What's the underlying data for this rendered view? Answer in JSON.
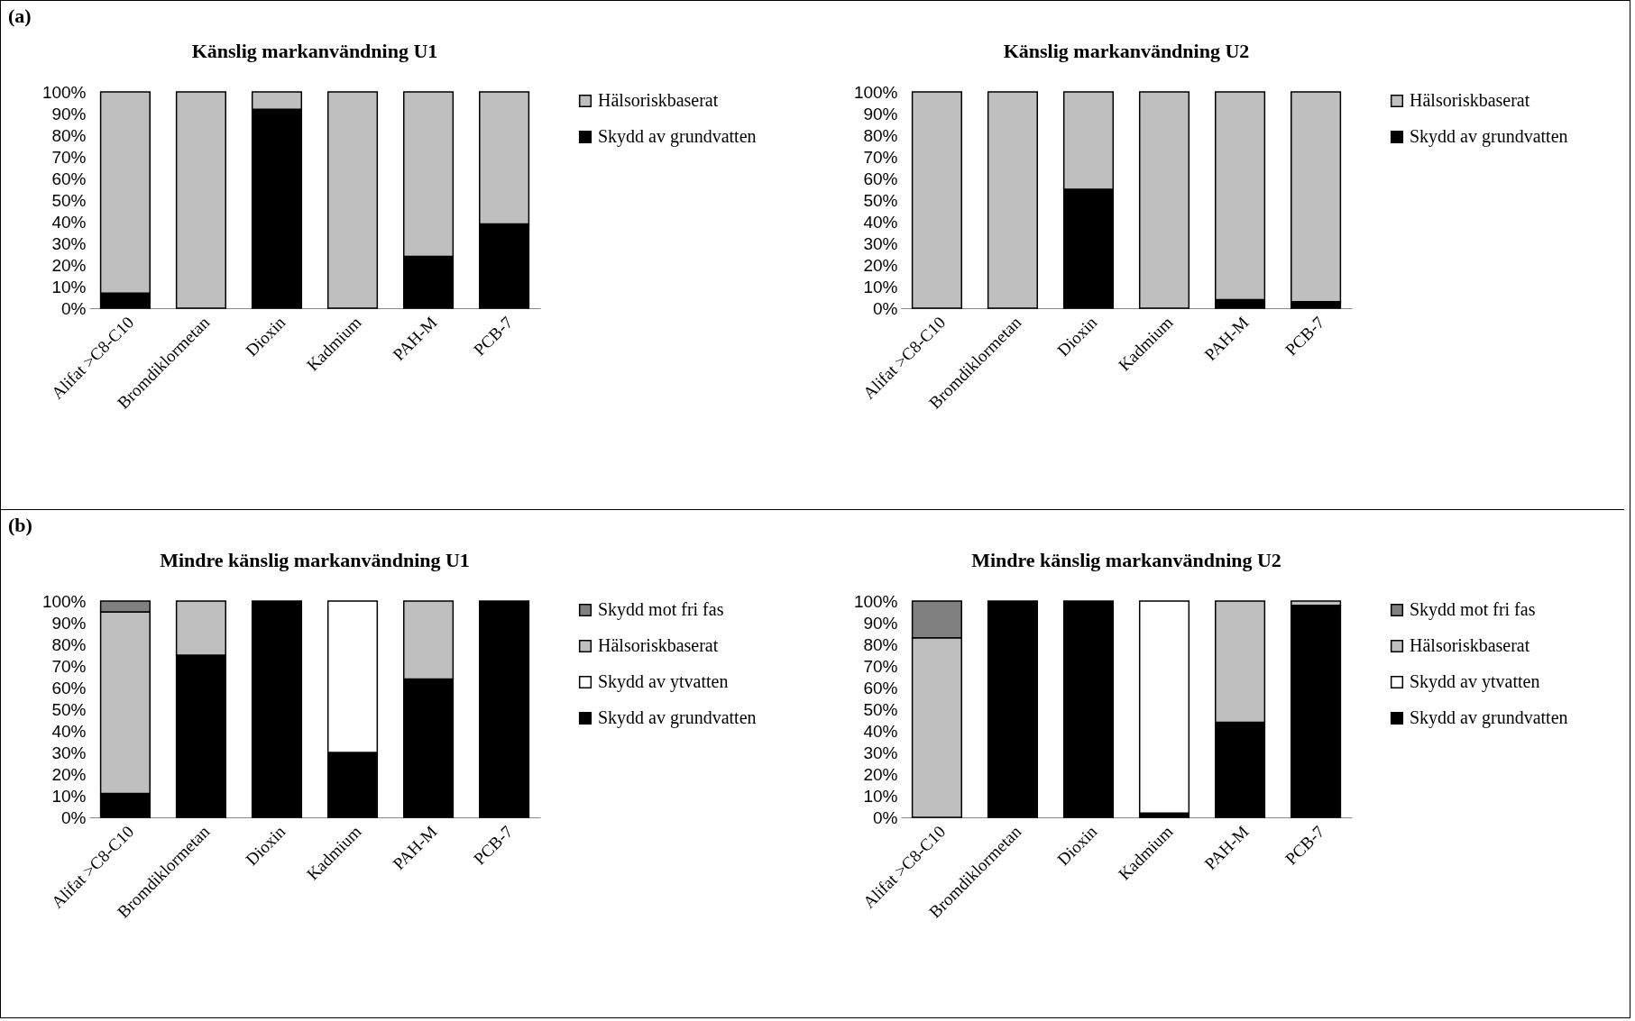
{
  "chart_data": [
    {
      "type": "bar",
      "title": "Känslig markanvändning U1",
      "annotations": [
        "(a)"
      ],
      "categories": [
        "Alifat >C8-C10",
        "Bromdiklormetan",
        "Dioxin",
        "Kadmium",
        "PAH-M",
        "PCB-7"
      ],
      "stacked": true,
      "legend": "right",
      "ylim": [
        0,
        100
      ],
      "yticks": [
        {
          "value": 0,
          "label": "0%"
        },
        {
          "value": 10,
          "label": "10%"
        },
        {
          "value": 20,
          "label": "20%"
        },
        {
          "value": 30,
          "label": "30%"
        },
        {
          "value": 40,
          "label": "40%"
        },
        {
          "value": 50,
          "label": "50%"
        },
        {
          "value": 60,
          "label": "60%"
        },
        {
          "value": 70,
          "label": "70%"
        },
        {
          "value": 80,
          "label": "80%"
        },
        {
          "value": 90,
          "label": "90%"
        },
        {
          "value": 100,
          "label": "100%"
        }
      ],
      "series": [
        {
          "name": "Skydd av grundvatten",
          "color": "#000000",
          "values": [
            7,
            0,
            92,
            0,
            24,
            39
          ]
        },
        {
          "name": "Hälsoriskbaserat",
          "color": "#bfbfbf",
          "values": [
            93,
            100,
            8,
            100,
            76,
            61
          ]
        }
      ]
    },
    {
      "type": "bar",
      "title": "Känslig markanvändning U2",
      "categories": [
        "Alifat >C8-C10",
        "Bromdiklormetan",
        "Dioxin",
        "Kadmium",
        "PAH-M",
        "PCB-7"
      ],
      "stacked": true,
      "legend": "right",
      "ylim": [
        0,
        100
      ],
      "yticks": [
        {
          "value": 0,
          "label": "0%"
        },
        {
          "value": 10,
          "label": "10%"
        },
        {
          "value": 20,
          "label": "20%"
        },
        {
          "value": 30,
          "label": "30%"
        },
        {
          "value": 40,
          "label": "40%"
        },
        {
          "value": 50,
          "label": "50%"
        },
        {
          "value": 60,
          "label": "60%"
        },
        {
          "value": 70,
          "label": "70%"
        },
        {
          "value": 80,
          "label": "80%"
        },
        {
          "value": 90,
          "label": "90%"
        },
        {
          "value": 100,
          "label": "100%"
        }
      ],
      "series": [
        {
          "name": "Skydd av grundvatten",
          "color": "#000000",
          "values": [
            0,
            0,
            55,
            0,
            4,
            3
          ]
        },
        {
          "name": "Hälsoriskbaserat",
          "color": "#bfbfbf",
          "values": [
            100,
            100,
            45,
            100,
            96,
            97
          ]
        }
      ]
    },
    {
      "type": "bar",
      "title": "Mindre känslig markanvändning U1",
      "annotations": [
        "(b)"
      ],
      "categories": [
        "Alifat >C8-C10",
        "Bromdiklormetan",
        "Dioxin",
        "Kadmium",
        "PAH-M",
        "PCB-7"
      ],
      "stacked": true,
      "legend": "right",
      "ylim": [
        0,
        100
      ],
      "yticks": [
        {
          "value": 0,
          "label": "0%"
        },
        {
          "value": 10,
          "label": "10%"
        },
        {
          "value": 20,
          "label": "20%"
        },
        {
          "value": 30,
          "label": "30%"
        },
        {
          "value": 40,
          "label": "40%"
        },
        {
          "value": 50,
          "label": "50%"
        },
        {
          "value": 60,
          "label": "60%"
        },
        {
          "value": 70,
          "label": "70%"
        },
        {
          "value": 80,
          "label": "80%"
        },
        {
          "value": 90,
          "label": "90%"
        },
        {
          "value": 100,
          "label": "100%"
        }
      ],
      "series": [
        {
          "name": "Skydd av grundvatten",
          "color": "#000000",
          "values": [
            11,
            75,
            100,
            30,
            64,
            100
          ]
        },
        {
          "name": "Skydd av ytvatten",
          "color": "#ffffff",
          "values": [
            0,
            0,
            0,
            70,
            0,
            0
          ]
        },
        {
          "name": "Hälsoriskbaserat",
          "color": "#bfbfbf",
          "values": [
            84,
            25,
            0,
            0,
            36,
            0
          ]
        },
        {
          "name": "Skydd mot fri fas",
          "color": "#808080",
          "values": [
            5,
            0,
            0,
            0,
            0,
            0
          ]
        }
      ]
    },
    {
      "type": "bar",
      "title": "Mindre känslig markanvändning U2",
      "categories": [
        "Alifat >C8-C10",
        "Bromdiklormetan",
        "Dioxin",
        "Kadmium",
        "PAH-M",
        "PCB-7"
      ],
      "stacked": true,
      "legend": "right",
      "ylim": [
        0,
        100
      ],
      "yticks": [
        {
          "value": 0,
          "label": "0%"
        },
        {
          "value": 10,
          "label": "10%"
        },
        {
          "value": 20,
          "label": "20%"
        },
        {
          "value": 30,
          "label": "30%"
        },
        {
          "value": 40,
          "label": "40%"
        },
        {
          "value": 50,
          "label": "50%"
        },
        {
          "value": 60,
          "label": "60%"
        },
        {
          "value": 70,
          "label": "70%"
        },
        {
          "value": 80,
          "label": "80%"
        },
        {
          "value": 90,
          "label": "90%"
        },
        {
          "value": 100,
          "label": "100%"
        }
      ],
      "series": [
        {
          "name": "Skydd av grundvatten",
          "color": "#000000",
          "values": [
            0,
            100,
            100,
            2,
            44,
            98
          ]
        },
        {
          "name": "Skydd av ytvatten",
          "color": "#ffffff",
          "values": [
            0,
            0,
            0,
            98,
            0,
            0
          ]
        },
        {
          "name": "Hälsoriskbaserat",
          "color": "#bfbfbf",
          "values": [
            83,
            0,
            0,
            0,
            56,
            2
          ]
        },
        {
          "name": "Skydd mot fri fas",
          "color": "#808080",
          "values": [
            17,
            0,
            0,
            0,
            0,
            0
          ]
        }
      ]
    }
  ]
}
